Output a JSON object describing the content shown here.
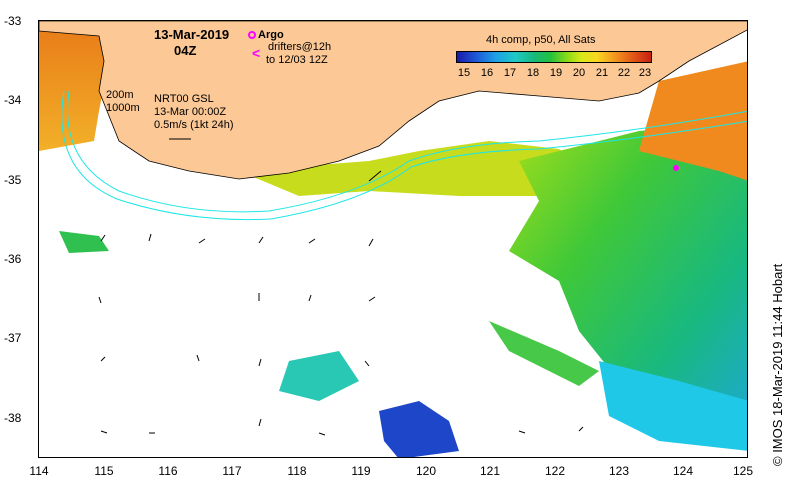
{
  "map": {
    "title": "13-Mar-2019",
    "time": "04Z",
    "lon_range": [
      114,
      125
    ],
    "lat_range": [
      -38.5,
      -33
    ],
    "x_ticks": [
      "114",
      "115",
      "116",
      "117",
      "118",
      "119",
      "120",
      "121",
      "122",
      "123",
      "124",
      "125"
    ],
    "y_ticks": [
      "-33",
      "-34",
      "-35",
      "-36",
      "-37",
      "-38"
    ]
  },
  "legend": {
    "argo": "Argo",
    "drifters": "drifters@12h",
    "drifters_sub": "to 12/03 12Z",
    "isobath_200": "200m",
    "isobath_1000": "1000m",
    "nrt_label": "NRT00 GSL",
    "nrt_date": "13-Mar 00:00Z",
    "nrt_velocity": "0.5m/s (1kt 24h)"
  },
  "colorbar": {
    "title": "4h comp, p50, All Sats",
    "ticks": [
      "15",
      "16",
      "17",
      "18",
      "19",
      "20",
      "21",
      "22",
      "23"
    ]
  },
  "footer": {
    "copyright": "© IMOS 18-Mar-2019 11:44 Hobart"
  },
  "colors": {
    "land": "#fbc896",
    "isobath": "#1ee6e6",
    "argo": "#ff00ff"
  }
}
